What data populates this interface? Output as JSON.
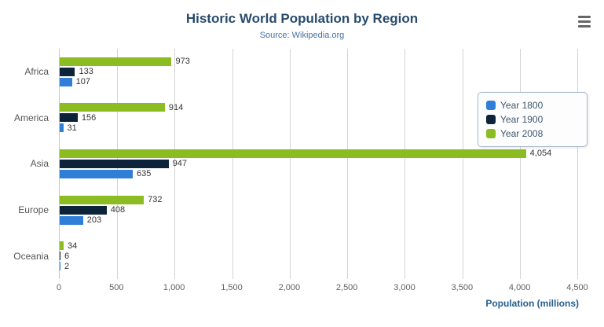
{
  "header": {
    "title": "Historic World Population by Region",
    "subtitle": "Source: Wikipedia.org"
  },
  "menu": {
    "icon": "hamburger-menu-icon"
  },
  "axis": {
    "x_title": "Population (millions)"
  },
  "colors": {
    "title": "#274b6d",
    "subtitle": "#4572a7",
    "axis_title": "#255f8e",
    "gridline": "#d4d4d4",
    "axis_line": "#c0c8d0",
    "series_blue": "#2f7ed8",
    "series_navy": "#0d233a",
    "series_green": "#8bbc21"
  },
  "chart_data": {
    "type": "bar",
    "orientation": "horizontal",
    "title": "Historic World Population by Region",
    "subtitle": "Source: Wikipedia.org",
    "categories": [
      "Africa",
      "America",
      "Asia",
      "Europe",
      "Oceania"
    ],
    "series": [
      {
        "name": "Year 1800",
        "color": "#2f7ed8",
        "values": [
          107,
          31,
          635,
          203,
          2
        ]
      },
      {
        "name": "Year 1900",
        "color": "#0d233a",
        "values": [
          133,
          156,
          947,
          408,
          6
        ]
      },
      {
        "name": "Year 2008",
        "color": "#8bbc21",
        "values": [
          973,
          914,
          4054,
          732,
          34
        ]
      }
    ],
    "visual_series_order_top_to_bottom": [
      "Year 2008",
      "Year 1900",
      "Year 1800"
    ],
    "xlabel": "Population (millions)",
    "ylabel": "",
    "xlim": [
      0,
      4500
    ],
    "tick_interval": 500,
    "tick_labels": [
      "0",
      "500",
      "1,000",
      "1,500",
      "2,000",
      "2,500",
      "3,000",
      "3,500",
      "4,000",
      "4,500"
    ],
    "grid": "vertical",
    "legend_position": "right",
    "data_labels": true
  }
}
